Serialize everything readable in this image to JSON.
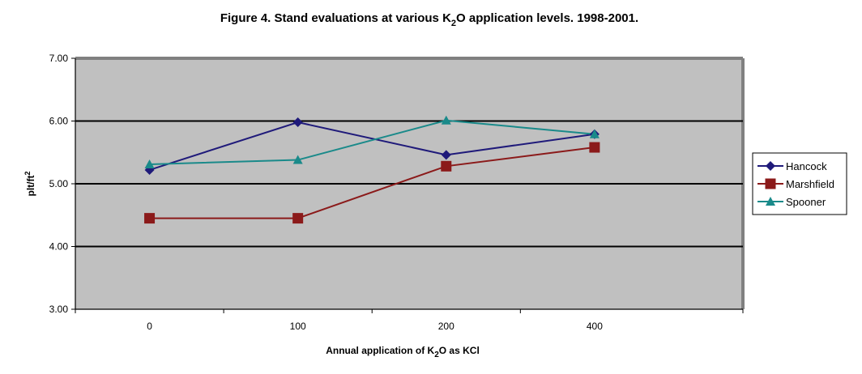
{
  "chart_data": {
    "type": "line",
    "title_parts": {
      "pre": "Figure 4. Stand evaluations at various K",
      "sub": "2",
      "post": "O application levels. 1998-2001."
    },
    "xlabel_parts": {
      "pre": "Annual application of K",
      "sub": "2",
      "post": "O as KCl"
    },
    "ylabel_parts": {
      "pre": "plt/ft",
      "sup": "2"
    },
    "categories": [
      "0",
      "100",
      "200",
      "400"
    ],
    "ylim": [
      3,
      7
    ],
    "yticks": [
      "3.00",
      "4.00",
      "5.00",
      "6.00",
      "7.00"
    ],
    "grid": true,
    "plot_background": "#c0c0c0",
    "legend_position": "right",
    "series": [
      {
        "name": "Hancock",
        "values": [
          5.22,
          5.98,
          5.46,
          5.79
        ],
        "color": "#1f1a7a",
        "marker": "diamond"
      },
      {
        "name": "Marshfield",
        "values": [
          4.45,
          4.45,
          5.28,
          5.58
        ],
        "color": "#8b1a1a",
        "marker": "square"
      },
      {
        "name": "Spooner",
        "values": [
          5.31,
          5.38,
          6.01,
          5.79
        ],
        "color": "#1a8a8a",
        "marker": "triangle"
      }
    ]
  }
}
